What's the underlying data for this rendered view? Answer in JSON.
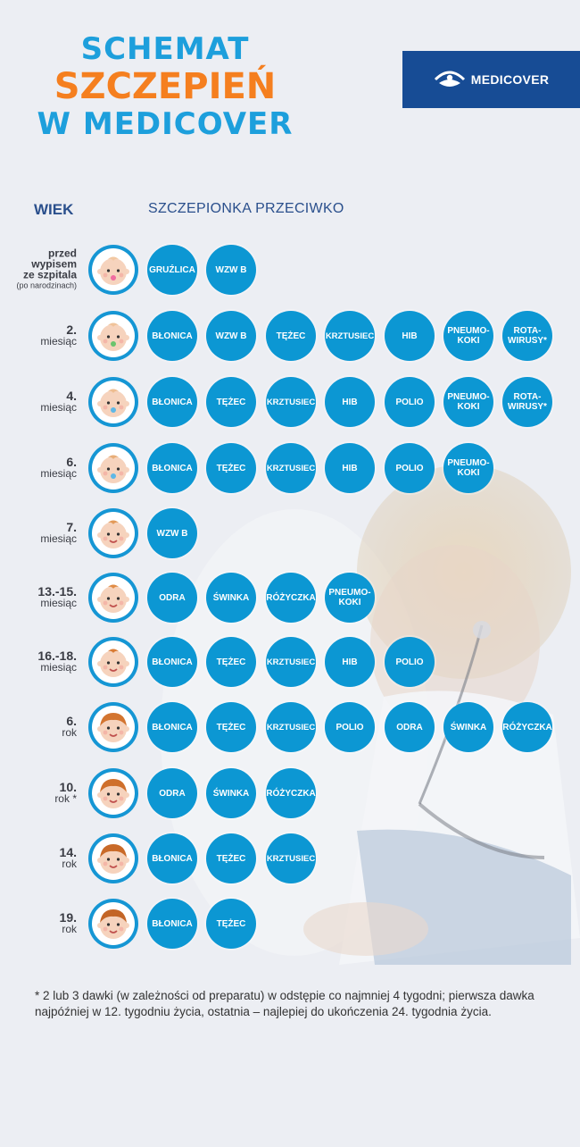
{
  "title": {
    "line1": "SCHEMAT",
    "line2": "SZCZEPIEŃ",
    "line3": "W MEDICOVER"
  },
  "logo": {
    "text": "MEDICOVER",
    "icon": "medicover-logo-icon"
  },
  "colors": {
    "blue": "#1d9fdc",
    "orange": "#f57f1f",
    "dark_blue": "#174c95",
    "bubble": "#0c97d3",
    "bg": "#eceef3"
  },
  "headers": {
    "age": "WIEK",
    "vaccine": "SZCZEPIONKA PRZECIWKO"
  },
  "rows": [
    {
      "age": [
        "przed",
        "wypisem",
        "ze szpitala"
      ],
      "age_note": "(po narodzinach)",
      "vaccines": [
        "GRUŹLICA",
        "WZW B"
      ]
    },
    {
      "age": [
        "2.",
        "miesiąc"
      ],
      "vaccines": [
        "BŁONICA",
        "WZW B",
        "TĘŻEC",
        "KRZTUSIEC",
        "HIB",
        "PNEUMO-KOKI",
        "ROTA-WIRUSY*"
      ]
    },
    {
      "age": [
        "4.",
        "miesiąc"
      ],
      "vaccines": [
        "BŁONICA",
        "TĘŻEC",
        "KRZTUSIEC",
        "HIB",
        "POLIO",
        "PNEUMO-KOKI",
        "ROTA-WIRUSY*"
      ]
    },
    {
      "age": [
        "6.",
        "miesiąc"
      ],
      "vaccines": [
        "BŁONICA",
        "TĘŻEC",
        "KRZTUSIEC",
        "HIB",
        "POLIO",
        "PNEUMO-KOKI"
      ]
    },
    {
      "age": [
        "7.",
        "miesiąc"
      ],
      "vaccines": [
        "WZW B"
      ]
    },
    {
      "age": [
        "13.-15.",
        "miesiąc"
      ],
      "vaccines": [
        "ODRA",
        "ŚWINKA",
        "RÓŻYCZKA",
        "PNEUMO-KOKI"
      ]
    },
    {
      "age": [
        "16.-18.",
        "miesiąc"
      ],
      "vaccines": [
        "BŁONICA",
        "TĘŻEC",
        "KRZTUSIEC",
        "HIB",
        "POLIO"
      ]
    },
    {
      "age": [
        "6.",
        "rok"
      ],
      "vaccines": [
        "BŁONICA",
        "TĘŻEC",
        "KRZTUSIEC",
        "POLIO",
        "ODRA",
        "ŚWINKA",
        "RÓŻYCZKA"
      ]
    },
    {
      "age": [
        "10.",
        "rok *"
      ],
      "vaccines": [
        "ODRA",
        "ŚWINKA",
        "RÓŻYCZKA"
      ]
    },
    {
      "age": [
        "14.",
        "rok"
      ],
      "vaccines": [
        "BŁONICA",
        "TĘŻEC",
        "KRZTUSIEC"
      ]
    },
    {
      "age": [
        "19.",
        "rok"
      ],
      "vaccines": [
        "BŁONICA",
        "TĘŻEC"
      ]
    }
  ],
  "footnote": "*  2 lub 3 dawki (w zależności od preparatu) w odstępie co najmniej 4 tygodni; pierwsza dawka najpóźniej w 12. tygodniu życia, ostatnia – najlepiej do ukończenia 24. tygodnia życia."
}
